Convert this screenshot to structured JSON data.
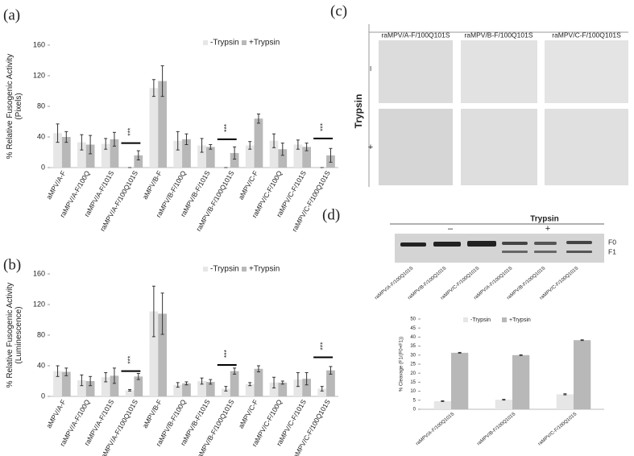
{
  "chart_data": [
    {
      "type": "bar",
      "panel_label": "(a)",
      "ylabel_lines": [
        "% Relative Fusogenic Activity",
        "(Pixels)"
      ],
      "categories": [
        "aMPV/A-F",
        "raMPV/A-F/100Q",
        "raMPV/A-F/101S",
        "raMPV/A-F/100Q101S",
        "aMPV/B-F",
        "raMPV/B-F/100Q",
        "raMPV/B-F/101S",
        "raMPV/B-F/100Q101S",
        "aMPV/C-F",
        "raMPV/C-F/100Q",
        "raMPV/C-F/101S",
        "raMPV/C-F/100Q101S"
      ],
      "series": [
        {
          "name": "-Trypsin",
          "color": "#e6e6e6",
          "values": [
            45,
            33,
            31,
            0,
            104,
            35,
            29,
            0,
            29,
            35,
            30,
            0
          ],
          "errors": [
            12,
            10,
            7,
            0,
            11,
            12,
            9,
            0,
            5,
            9,
            6,
            0
          ]
        },
        {
          "name": "+Trypsin",
          "color": "#b8b8b8",
          "values": [
            40,
            30,
            37,
            16,
            113,
            37,
            27,
            19,
            64,
            24,
            27,
            16
          ],
          "errors": [
            7,
            12,
            9,
            6,
            20,
            7,
            3,
            8,
            6,
            8,
            5,
            9
          ]
        }
      ],
      "annotations": [
        {
          "text": "***",
          "category": "raMPV/A-F/100Q101S",
          "y": 32
        },
        {
          "text": "***",
          "category": "raMPV/B-F/100Q101S",
          "y": 37
        },
        {
          "text": "***",
          "category": "raMPV/C-F/100Q101S",
          "y": 38
        }
      ],
      "ylim": [
        0,
        160
      ],
      "yticks": [
        0,
        40,
        80,
        120,
        160
      ]
    },
    {
      "type": "bar",
      "panel_label": "(b)",
      "ylabel_lines": [
        "% Relative Fusogenic Activity",
        "(Luminescence)"
      ],
      "categories": [
        "aMPV/A-F",
        "raMPV/A-F/100Q",
        "raMPV/A-F/101S",
        "raMPV/A-F/100Q101S",
        "aMPV/B-F",
        "raMPV/B-F/100Q",
        "raMPV/B-F/101S",
        "raMPV/B-F/100Q101S",
        "aMPV/C-F",
        "raMPV/C-F/100Q",
        "raMPV/C-F/101S",
        "raMPV/C-F/100Q101S"
      ],
      "series": [
        {
          "name": "-Trypsin",
          "color": "#e6e6e6",
          "values": [
            33,
            21,
            25,
            8,
            111,
            15,
            20,
            10,
            16,
            18,
            22,
            10
          ],
          "errors": [
            7,
            7,
            6,
            1,
            33,
            3,
            4,
            3,
            2,
            7,
            9,
            3
          ]
        },
        {
          "name": "+Trypsin",
          "color": "#b8b8b8",
          "values": [
            32,
            20,
            27,
            26,
            108,
            17,
            19,
            33,
            36,
            18,
            23,
            34
          ],
          "errors": [
            5,
            6,
            10,
            4,
            27,
            2,
            3,
            4,
            4,
            2,
            8,
            5
          ]
        }
      ],
      "annotations": [
        {
          "text": "***",
          "category": "raMPV/A-F/100Q101S",
          "y": 33
        },
        {
          "text": "***",
          "category": "raMPV/B-F/100Q101S",
          "y": 41
        },
        {
          "text": "***",
          "category": "raMPV/C-F/100Q101S",
          "y": 51
        }
      ],
      "ylim": [
        0,
        160
      ],
      "yticks": [
        0,
        40,
        80,
        120,
        160
      ]
    },
    {
      "type": "bar",
      "ylabel_lines": [
        "% Cleavage (F1/(F0+F1))"
      ],
      "categories": [
        "raMPV/A-F/100Q101S",
        "raMPV/B-F/100Q101S",
        "raMPV/C-F/100Q101S"
      ],
      "series": [
        {
          "name": "-Trypsin",
          "color": "#e6e6e6",
          "values": [
            4.5,
            5.3,
            8.3
          ],
          "errors": [
            0.2,
            0.2,
            0.3
          ]
        },
        {
          "name": "+Trypsin",
          "color": "#b8b8b8",
          "values": [
            31.3,
            30,
            38.3
          ],
          "errors": [
            0.2,
            0.2,
            0.2
          ]
        }
      ],
      "ylim": [
        0,
        50
      ],
      "yticks": [
        0,
        5,
        10,
        15,
        20,
        25,
        30,
        35,
        40,
        45,
        50
      ]
    }
  ],
  "panel_c": {
    "label": "(c)",
    "columns": [
      "raMPV/A-F/100Q101S",
      "raMPV/B-F/100Q101S",
      "raMPV/C-F/100Q101S"
    ],
    "row_title": "Trypsin",
    "rows": [
      "–",
      "+"
    ]
  },
  "panel_d_blot": {
    "label": "(d)",
    "title": "Trypsin",
    "groups": [
      "–",
      "+"
    ],
    "bands": [
      "F0",
      "F1"
    ],
    "lanes": [
      "raMPV/A-F/100Q101S",
      "raMPV/B-F/100Q101S",
      "raMPV/C-F/100Q101S",
      "raMPV/A-F/100Q101S",
      "raMPV/B-F/100Q101S",
      "raMPV/C-F/100Q101S"
    ]
  }
}
